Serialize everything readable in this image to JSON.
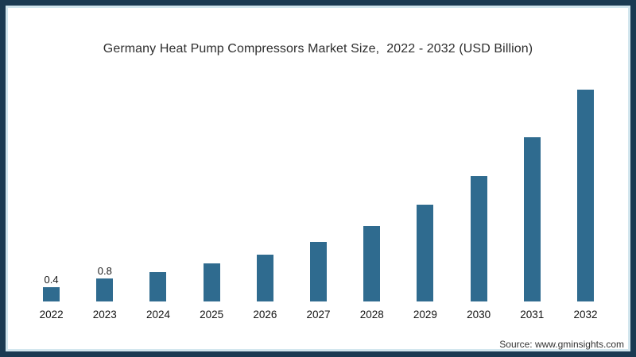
{
  "chart_data": {
    "type": "bar",
    "title": "Germany Heat Pump Compressors Market Size,  2022 - 2032 (USD Billion)",
    "categories": [
      "2022",
      "2023",
      "2024",
      "2025",
      "2026",
      "2027",
      "2028",
      "2029",
      "2030",
      "2031",
      "2032"
    ],
    "values": [
      0.4,
      0.8,
      1.1,
      1.5,
      1.9,
      2.5,
      3.2,
      4.2,
      5.5,
      7.3,
      9.5
    ],
    "data_labels": [
      "0.4",
      "0.8",
      "",
      "",
      "",
      "",
      "",
      "",
      "",
      "",
      ""
    ],
    "xlabel": "",
    "ylabel": "",
    "ylim": [
      0,
      10
    ],
    "grid": false,
    "legend": "none",
    "bar_color": "#2f6b8f"
  },
  "source": {
    "text": "Source: www.gminsights.com"
  },
  "colors": {
    "frame_border": "#1b3a52",
    "frame_accent_line": "#d2e6ee",
    "bar": "#2f6b8f",
    "title_text": "#2e2e2e",
    "axis_text": "#141414"
  }
}
